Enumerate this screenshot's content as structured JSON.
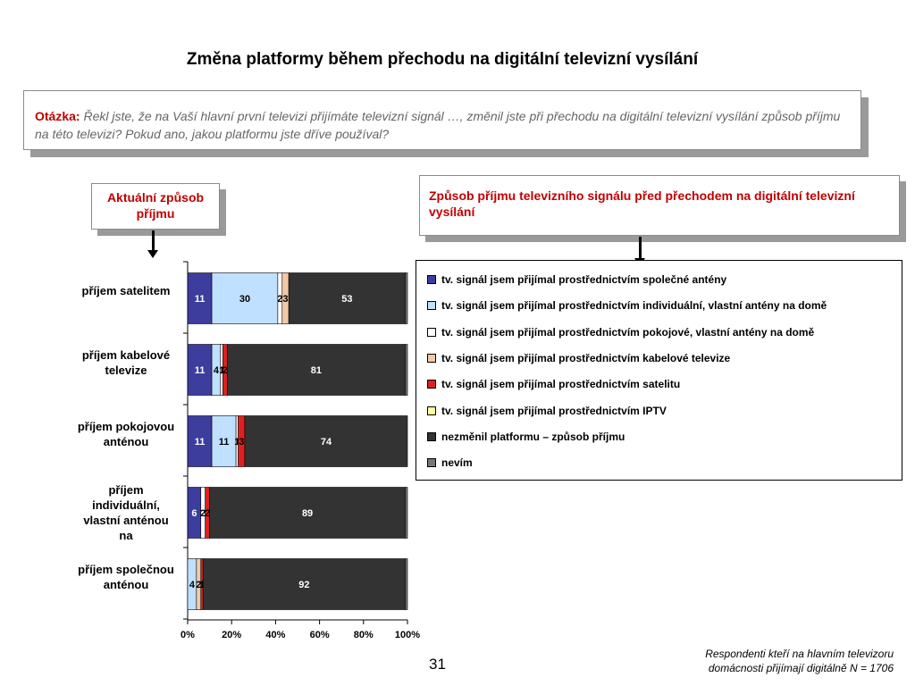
{
  "page": {
    "title": "Změna platformy během přechodu na digitální televizní vysílání",
    "page_number": "31",
    "footnote_line1": "Respondenti kteří na hlavním televizoru",
    "footnote_line2": "domácnosti přijímají digitálně N = 1706"
  },
  "question": {
    "label": "Otázka:",
    "text": "Řekl jste, že na Vaší hlavní první televizi přijímáte televizní signál …, změnil jste při přechodu na digitální televizní vysílání způsob příjmu na této televizi? Pokud ano, jakou platformu jste dříve používal?"
  },
  "callouts": {
    "current": "Aktuální způsob příjmu",
    "previous": "Způsob příjmu televizního signálu před přechodem na digitální televizní vysílání"
  },
  "chart_data": {
    "type": "bar",
    "orientation": "horizontal",
    "stacked": "percent",
    "categories": [
      "příjem satelitem",
      "příjem kabelové televize",
      "příjem pokojovou anténou",
      "příjem individuální, vlastní anténou na",
      "příjem společnou anténou"
    ],
    "series": [
      {
        "name": "tv. signál jsem přijímal prostřednictvím společné antény",
        "color": "#3d3d9e",
        "values": [
          11,
          11,
          11,
          6,
          0
        ]
      },
      {
        "name": "tv. signál jsem přijímal prostřednictvím individuální, vlastní antény na domě",
        "color": "#bfe0ff",
        "values": [
          30,
          4,
          11,
          0,
          4
        ]
      },
      {
        "name": "tv. signál jsem přijímal prostřednictvím pokojové, vlastní antény na domě",
        "color": "#ffffff",
        "values": [
          2,
          1,
          1,
          2,
          0
        ]
      },
      {
        "name": "tv. signál jsem přijímal  prostřednictvím kabelové televize",
        "color": "#f2c8a8",
        "values": [
          3,
          0,
          0,
          0,
          2
        ]
      },
      {
        "name": "tv. signál jsem přijímal prostřednictvím satelitu",
        "color": "#e02020",
        "values": [
          0,
          2,
          3,
          2,
          1
        ]
      },
      {
        "name": "tv. signál jsem přijímal prostřednictvím IPTV",
        "color": "#ffffa0",
        "values": [
          0,
          0,
          0,
          0,
          0
        ]
      },
      {
        "name": "nezměnil platformu – způsob  příjmu",
        "color": "#333333",
        "values": [
          53,
          81,
          74,
          89,
          92
        ]
      },
      {
        "name": "nevím",
        "color": "#777777",
        "values": [
          1,
          1,
          0,
          1,
          1
        ]
      }
    ],
    "data_labels": [
      [
        "11",
        "30",
        "2",
        "3",
        null,
        null,
        "53",
        null
      ],
      [
        "11",
        "4",
        "1",
        null,
        "2",
        null,
        "81",
        null
      ],
      [
        "11",
        "11",
        "1",
        null,
        "3",
        null,
        "74",
        null
      ],
      [
        "6",
        null,
        "2",
        null,
        "2",
        null,
        "89",
        null
      ],
      [
        null,
        "4",
        null,
        "2",
        "1",
        null,
        "92",
        null
      ]
    ],
    "xticks": [
      "0%",
      "20%",
      "40%",
      "60%",
      "80%",
      "100%"
    ],
    "xlim": [
      0,
      100
    ],
    "legend_position": "right"
  }
}
